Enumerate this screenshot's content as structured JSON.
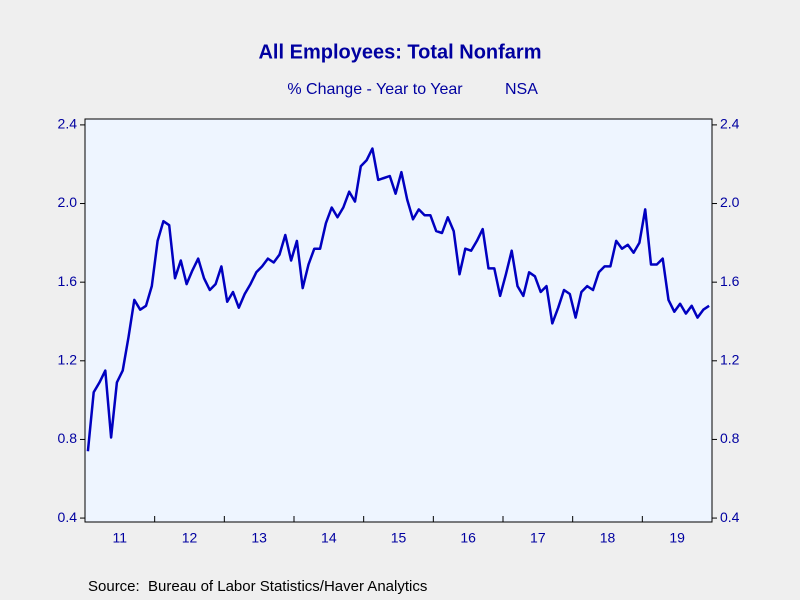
{
  "chart_data": {
    "type": "line",
    "title": "All Employees: Total Nonfarm",
    "subtitle": "% Change - Year to Year",
    "subtitle_note": "NSA",
    "source": "Source:  Bureau of Labor Statistics/Haver Analytics",
    "categories": [
      "11",
      null,
      null,
      null,
      null,
      null,
      null,
      null,
      null,
      null,
      null,
      null,
      "12",
      null,
      null,
      null,
      null,
      null,
      null,
      null,
      null,
      null,
      null,
      null,
      "13",
      null,
      null,
      null,
      null,
      null,
      null,
      null,
      null,
      null,
      null,
      null,
      "14",
      null,
      null,
      null,
      null,
      null,
      null,
      null,
      null,
      null,
      null,
      null,
      "15",
      null,
      null,
      null,
      null,
      null,
      null,
      null,
      null,
      null,
      null,
      null,
      "16",
      null,
      null,
      null,
      null,
      null,
      null,
      null,
      null,
      null,
      null,
      null,
      "17",
      null,
      null,
      null,
      null,
      null,
      null,
      null,
      null,
      null,
      null,
      null,
      "18",
      null,
      null,
      null,
      null,
      null,
      null,
      null,
      null,
      null,
      null,
      null,
      "19",
      null,
      null,
      null,
      null,
      null,
      null,
      null,
      null,
      null,
      null,
      null
    ],
    "series": [
      {
        "name": "All Employees: Total Nonfarm",
        "color": "#0000c0",
        "values": [
          0.74,
          1.04,
          1.09,
          1.15,
          0.81,
          1.09,
          1.15,
          1.32,
          1.51,
          1.46,
          1.48,
          1.58,
          1.81,
          1.91,
          1.89,
          1.62,
          1.71,
          1.59,
          1.66,
          1.72,
          1.62,
          1.56,
          1.59,
          1.68,
          1.5,
          1.55,
          1.47,
          1.54,
          1.59,
          1.65,
          1.68,
          1.72,
          1.7,
          1.74,
          1.84,
          1.71,
          1.81,
          1.57,
          1.69,
          1.77,
          1.77,
          1.9,
          1.98,
          1.93,
          1.98,
          2.06,
          2.01,
          2.19,
          2.22,
          2.28,
          2.12,
          2.13,
          2.14,
          2.05,
          2.16,
          2.02,
          1.92,
          1.97,
          1.94,
          1.94,
          1.86,
          1.85,
          1.93,
          1.86,
          1.64,
          1.77,
          1.76,
          1.81,
          1.87,
          1.67,
          1.67,
          1.53,
          1.64,
          1.76,
          1.58,
          1.53,
          1.65,
          1.63,
          1.55,
          1.58,
          1.39,
          1.47,
          1.56,
          1.54,
          1.42,
          1.55,
          1.58,
          1.56,
          1.65,
          1.68,
          1.68,
          1.81,
          1.77,
          1.79,
          1.75,
          1.8,
          1.97,
          1.69,
          1.69,
          1.72,
          1.51,
          1.45,
          1.49,
          1.44,
          1.48,
          1.42,
          1.46,
          1.48
        ]
      }
    ],
    "ylim": [
      0.38,
      2.43
    ],
    "yticks": [
      0.4,
      0.8,
      1.2,
      1.6,
      {
        "value": 2,
        "label": "2.0"
      },
      2.4
    ]
  }
}
